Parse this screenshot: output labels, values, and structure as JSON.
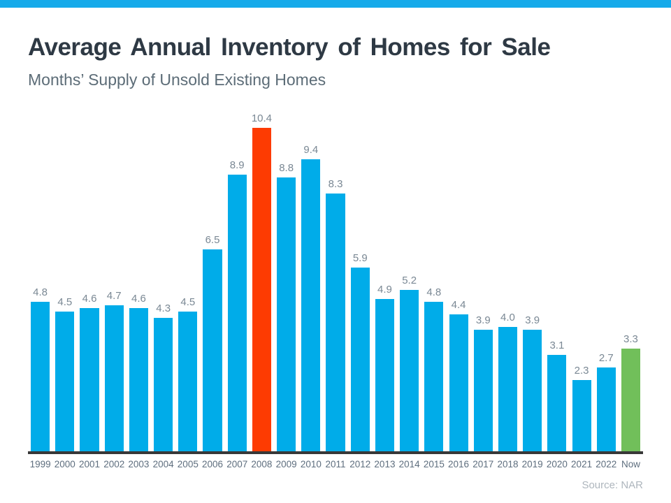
{
  "header": {
    "title": "Average Annual Inventory of Homes for Sale",
    "subtitle": "Months’ Supply of Unsold Existing Homes"
  },
  "source_note": "Source: NAR",
  "theme": {
    "top_stripe_color": "#16AAEA",
    "bar_default_color": "#00ACE9",
    "bar_red_color": "#FD3B02",
    "bar_green_color": "#71BF5A",
    "axis_line_color": "#383838",
    "title_color": "#2E3944",
    "subtitle_color": "#5C6C77",
    "value_label_color": "#7A8894",
    "x_label_color": "#5E6E7E",
    "source_color": "#AEB6BD"
  },
  "chart_data": {
    "type": "bar",
    "title": "Average Annual Inventory of Homes for Sale",
    "subtitle": "Months’ Supply of Unsold Existing Homes",
    "xlabel": "",
    "ylabel": "Months' Supply",
    "ylim": [
      0,
      10.4
    ],
    "grid": false,
    "legend": "none",
    "categories": [
      "1999",
      "2000",
      "2001",
      "2002",
      "2003",
      "2004",
      "2005",
      "2006",
      "2007",
      "2008",
      "2009",
      "2010",
      "2011",
      "2012",
      "2013",
      "2014",
      "2015",
      "2016",
      "2017",
      "2018",
      "2019",
      "2020",
      "2021",
      "2022",
      "Now"
    ],
    "values": [
      4.8,
      4.5,
      4.6,
      4.7,
      4.6,
      4.3,
      4.5,
      6.5,
      8.9,
      10.4,
      8.8,
      9.4,
      8.3,
      5.9,
      4.9,
      5.2,
      4.8,
      4.4,
      3.9,
      4.0,
      3.9,
      3.1,
      2.3,
      2.7,
      3.3
    ],
    "value_labels": [
      "4.8",
      "4.5",
      "4.6",
      "4.7",
      "4.6",
      "4.3",
      "4.5",
      "6.5",
      "8.9",
      "10.4",
      "8.8",
      "9.4",
      "8.3",
      "5.9",
      "4.9",
      "5.2",
      "4.8",
      "4.4",
      "3.9",
      "4.0",
      "3.9",
      "3.1",
      "2.3",
      "2.7",
      "3.3"
    ],
    "highlighted_bars": {
      "2008": "red",
      "Now": "green"
    },
    "annotations": []
  }
}
